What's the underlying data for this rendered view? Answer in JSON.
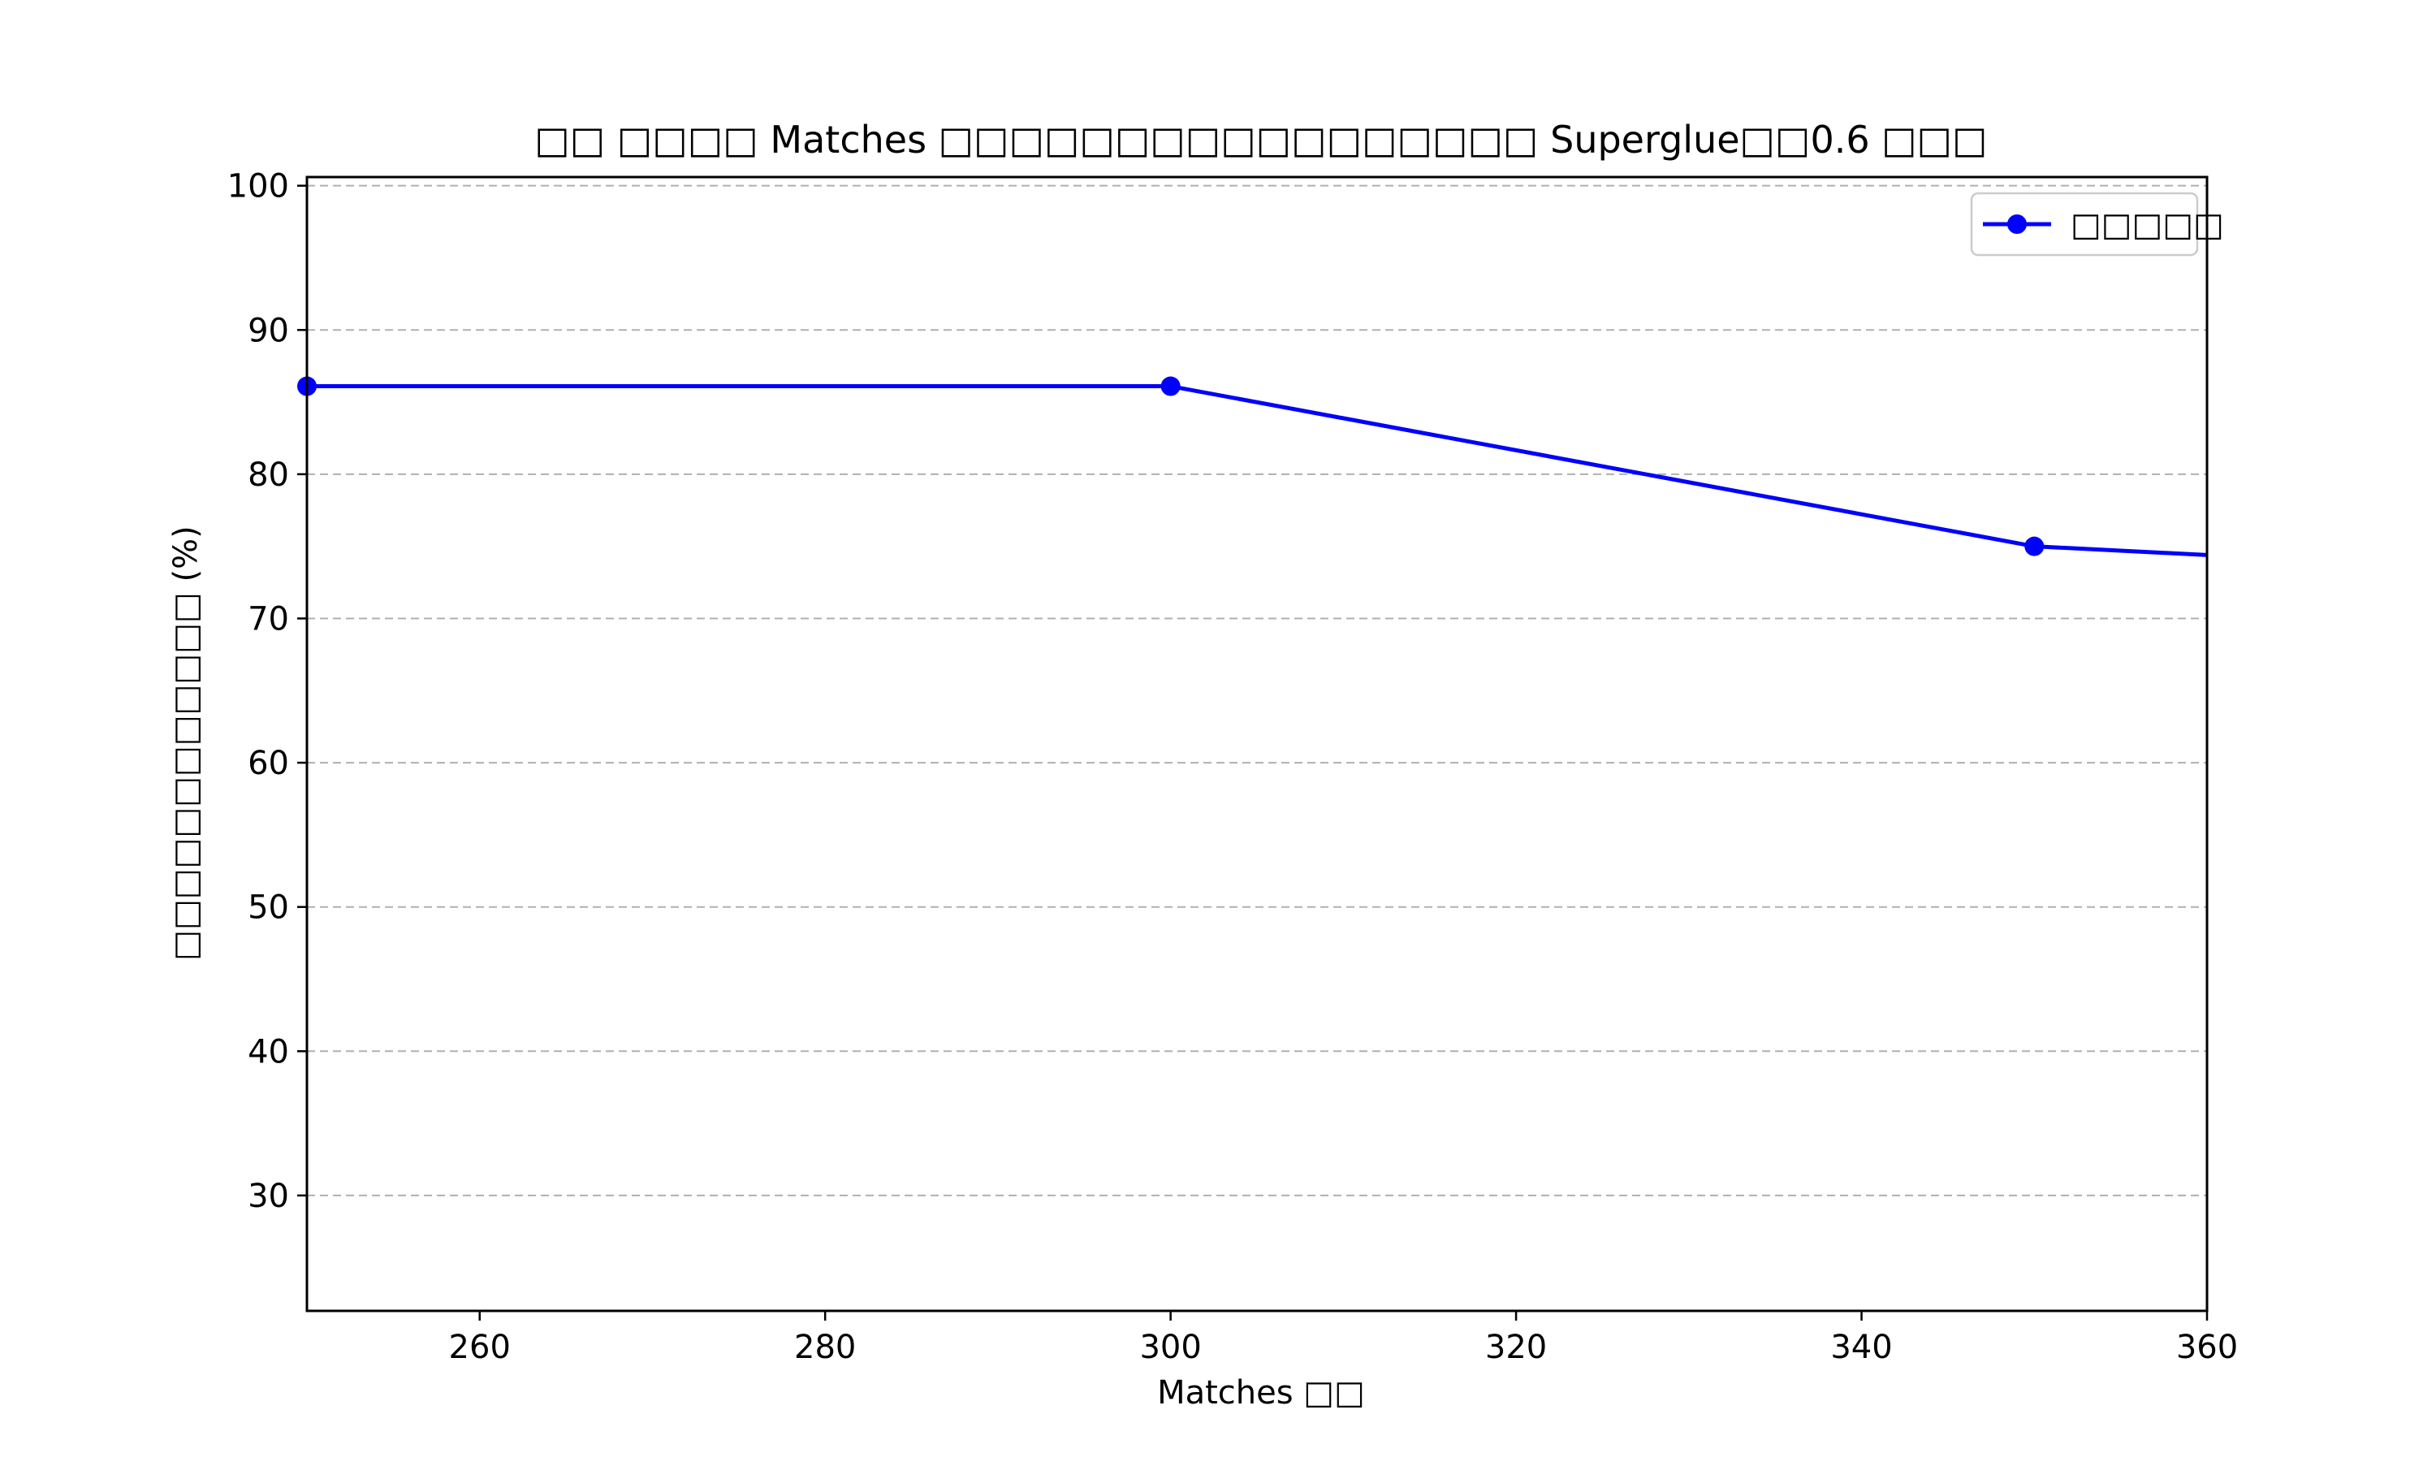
{
  "chart_data": {
    "type": "line",
    "title": "□□ □□□□ Matches □□□□□□□□□□□□□□□□□ Superglue□□0.6 □□□",
    "xlabel": "Matches □□",
    "ylabel": "□□□□□□□□□□□□ (%)",
    "xlim": [
      250,
      360
    ],
    "ylim": [
      22,
      100.6
    ],
    "x_ticks": [
      "260",
      "280",
      "300",
      "320",
      "340",
      "360"
    ],
    "y_ticks": [
      "30",
      "40",
      "50",
      "60",
      "70",
      "80",
      "90",
      "100"
    ],
    "grid": "y-dashed",
    "legend_position": "top-right",
    "series": [
      {
        "name": "□□□□□",
        "color": "#0000ff",
        "marker": "circle",
        "x": [
          250,
          300,
          350,
          360
        ],
        "y": [
          86.1,
          86.1,
          75.0,
          74.4
        ],
        "marked": [
          true,
          true,
          true,
          false
        ]
      }
    ]
  }
}
